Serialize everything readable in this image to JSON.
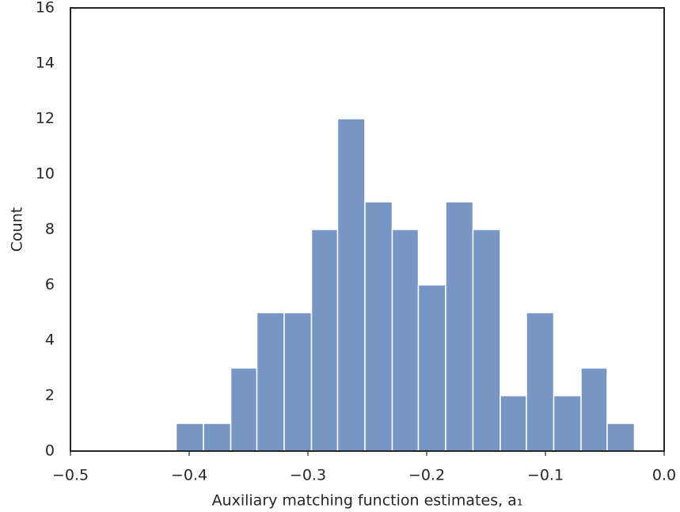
{
  "chart_data": {
    "type": "histogram",
    "x_label": "Auxiliary matching function estimates, a₁",
    "y_label": "Count",
    "bins": [
      -0.411,
      -0.388,
      -0.365,
      -0.343,
      -0.32,
      -0.297,
      -0.275,
      -0.252,
      -0.229,
      -0.207,
      -0.184,
      -0.161,
      -0.138,
      -0.116,
      -0.093,
      -0.07,
      -0.048,
      -0.025
    ],
    "values": [
      1,
      1,
      3,
      5,
      5,
      8,
      12,
      9,
      8,
      6,
      9,
      8,
      2,
      5,
      2,
      3,
      1
    ],
    "color": "#7896c5",
    "xlim": [
      -0.5,
      0.0
    ],
    "xticks": [
      {
        "value": -0.5,
        "label": "−0.5"
      },
      {
        "value": -0.4,
        "label": "−0.4"
      },
      {
        "value": -0.3,
        "label": "−0.3"
      },
      {
        "value": -0.2,
        "label": "−0.2"
      },
      {
        "value": -0.1,
        "label": "−0.1"
      },
      {
        "value": 0.0,
        "label": "0.0"
      }
    ],
    "ylim": [
      0,
      16
    ],
    "yticks": [
      0,
      2,
      4,
      6,
      8,
      10,
      12,
      14,
      16
    ],
    "grid": false
  }
}
